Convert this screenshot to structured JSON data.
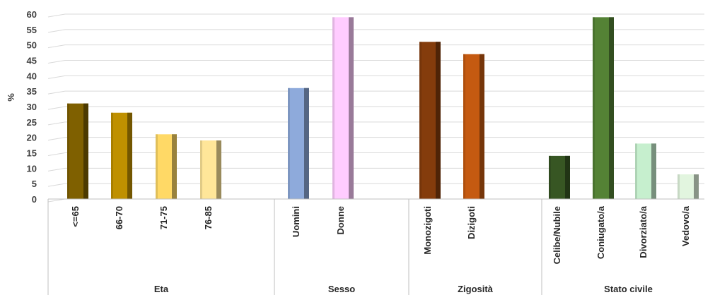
{
  "chart_data": {
    "type": "bar",
    "ylabel": "%",
    "ylim": [
      0,
      60
    ],
    "yticks": [
      0,
      5,
      10,
      15,
      20,
      25,
      30,
      35,
      40,
      45,
      50,
      55,
      60
    ],
    "grid": true,
    "legend": "none",
    "groups": [
      {
        "name": "Eta",
        "bars": [
          {
            "label": "<=65",
            "value": 31,
            "color": "#7f6000"
          },
          {
            "label": "66-70",
            "value": 28,
            "color": "#bf9000"
          },
          {
            "label": "71-75",
            "value": 21,
            "color": "#ffd966"
          },
          {
            "label": "76-85",
            "value": 19,
            "color": "#ffe699"
          }
        ]
      },
      {
        "name": "Sesso",
        "bars": [
          {
            "label": "Uomini",
            "value": 36,
            "color": "#8eaadb"
          },
          {
            "label": "Donne",
            "value": 59,
            "color": "#ffccff"
          }
        ]
      },
      {
        "name": "Zigosità",
        "bars": [
          {
            "label": "Monozigoti",
            "value": 51,
            "color": "#843c0c"
          },
          {
            "label": "Dizigoti",
            "value": 47,
            "color": "#c55a11"
          }
        ]
      },
      {
        "name": "Stato civile",
        "bars": [
          {
            "label": "Celibe/Nubile",
            "value": 14,
            "color": "#375623"
          },
          {
            "label": "Coniugato/a",
            "value": 59,
            "color": "#548235"
          },
          {
            "label": "Divorziato/a",
            "value": 18,
            "color": "#c6efce"
          },
          {
            "label": "Vedovo/a",
            "value": 8,
            "color": "#e2f5df"
          }
        ]
      }
    ]
  }
}
